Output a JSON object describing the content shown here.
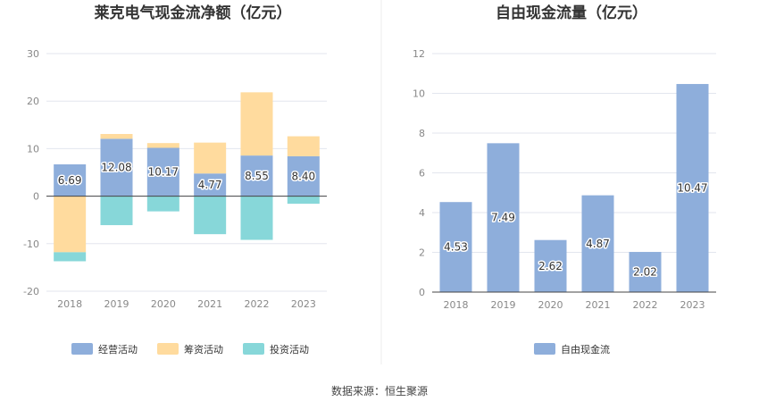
{
  "chart_data": [
    {
      "type": "bar",
      "stacked": true,
      "title": "莱克电气现金流净额（亿元）",
      "categories": [
        "2018",
        "2019",
        "2020",
        "2021",
        "2022",
        "2023"
      ],
      "ylim": [
        -20,
        30
      ],
      "yticks": [
        30,
        20,
        10,
        0,
        -10,
        -20
      ],
      "grid": true,
      "legend_position": "bottom",
      "series": [
        {
          "name": "经营活动",
          "color": "#8eaedb",
          "values": [
            6.69,
            12.08,
            10.17,
            4.77,
            8.55,
            8.4
          ],
          "labels": [
            "6.69",
            "12.08",
            "10.17",
            "4.77",
            "8.55",
            "8.40"
          ]
        },
        {
          "name": "筹资活动",
          "color": "#ffdb9e",
          "values": [
            -11.8,
            1.0,
            1.0,
            6.5,
            13.3,
            4.2
          ]
        },
        {
          "name": "投资活动",
          "color": "#87d7d9",
          "values": [
            -1.9,
            -6.1,
            -3.2,
            -8.0,
            -9.2,
            -1.6
          ]
        }
      ]
    },
    {
      "type": "bar",
      "title": "自由现金流量（亿元）",
      "categories": [
        "2018",
        "2019",
        "2020",
        "2021",
        "2022",
        "2023"
      ],
      "ylim": [
        0,
        12
      ],
      "yticks": [
        12,
        10,
        8,
        6,
        4,
        2,
        0
      ],
      "grid": true,
      "legend_position": "bottom",
      "series": [
        {
          "name": "自由现金流",
          "color": "#8eaedb",
          "values": [
            4.53,
            7.49,
            2.62,
            4.87,
            2.02,
            10.47
          ],
          "labels": [
            "4.53",
            "7.49",
            "2.62",
            "4.87",
            "2.02",
            "10.47"
          ]
        }
      ]
    }
  ],
  "source_text": "数据来源：恒生聚源",
  "colors": {
    "grid": "#e3e6ee",
    "axis": "#444444",
    "divider": "#eeeeee"
  }
}
